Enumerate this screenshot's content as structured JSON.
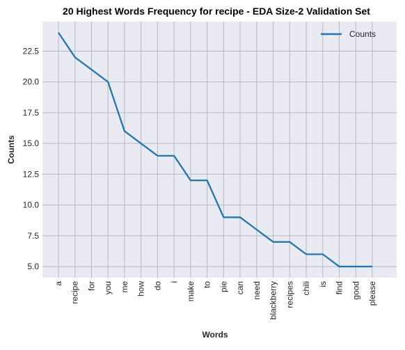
{
  "chart_data": {
    "type": "line",
    "title": "20 Highest Words Frequency for recipe - EDA Size-2 Validation Set",
    "xlabel": "Words",
    "ylabel": "Counts",
    "categories": [
      "a",
      "recipe",
      "for",
      "you",
      "me",
      "how",
      "do",
      "i",
      "make",
      "to",
      "pie",
      "can",
      "need",
      "blackberry",
      "recipes",
      "chili",
      "is",
      "find",
      "good",
      "please"
    ],
    "series": [
      {
        "name": "Counts",
        "values": [
          24,
          22,
          21,
          20,
          16,
          15,
          14,
          14,
          12,
          12,
          9,
          9,
          8,
          7,
          7,
          6,
          6,
          5,
          5,
          5
        ]
      }
    ],
    "ylim": [
      4.1,
      24.9
    ],
    "yticks": [
      "5.0",
      "7.5",
      "10.0",
      "12.5",
      "15.0",
      "17.5",
      "20.0",
      "22.5"
    ],
    "grid": true,
    "legend_position": "top-right",
    "colors": {
      "line": "#1f77b4",
      "plot_bg": "#eaeaf2",
      "grid": "#b8b8c0"
    }
  }
}
